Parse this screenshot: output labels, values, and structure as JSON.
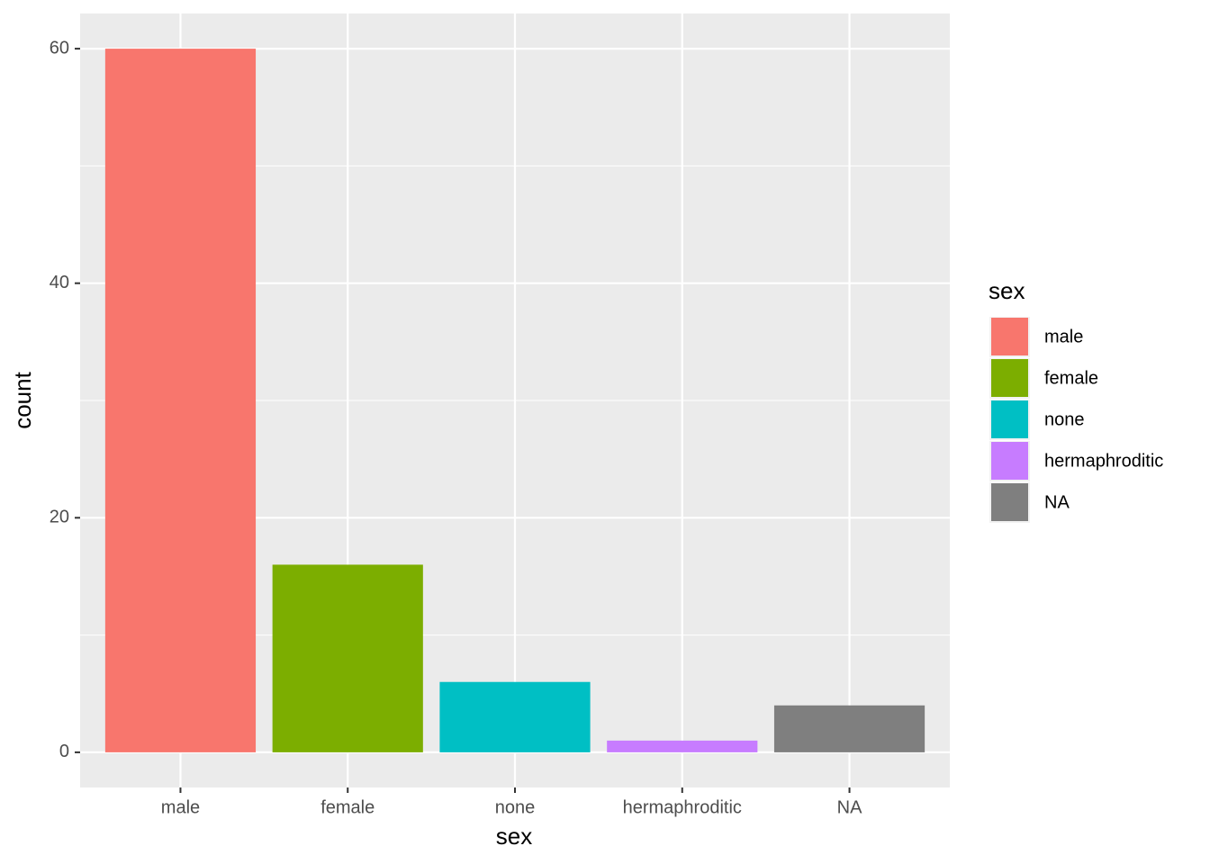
{
  "chart_data": {
    "type": "bar",
    "x_label": "sex",
    "y_label": "count",
    "legend_title": "sex",
    "categories": [
      "male",
      "female",
      "none",
      "hermaphroditic",
      "NA"
    ],
    "values": [
      60,
      16,
      6,
      1,
      4
    ],
    "colors": [
      "#f8766d",
      "#7cae00",
      "#00bfc4",
      "#c77cff",
      "#7f7f7f"
    ],
    "ylim": [
      -3,
      63
    ],
    "yticks": [
      0,
      20,
      40,
      60
    ],
    "grid": true,
    "minor_grid": true,
    "legend_position": "right"
  }
}
